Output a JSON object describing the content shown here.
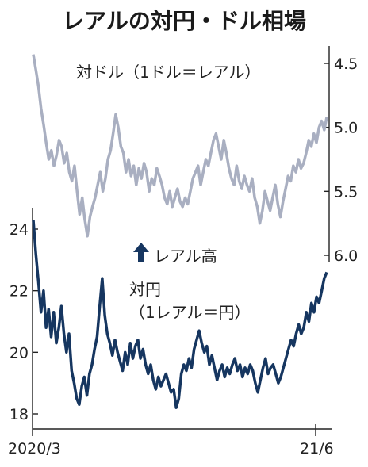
{
  "chart_data": {
    "type": "line",
    "title": "レアルの対円・ドル相場",
    "x_labels": [
      "2020/3",
      "21/6"
    ],
    "annotation": "レアル高",
    "colors": {
      "usd_line": "#a9afc1",
      "jpy_line": "#163660",
      "arrow": "#163660"
    },
    "series": [
      {
        "name_lines": [
          "対ドル（1ドル＝レアル）"
        ],
        "axis": "right",
        "ticks": [
          "4.5",
          "5.0",
          "5.5",
          "6.0"
        ],
        "ylim": [
          4.5,
          6.0
        ],
        "inverted": true,
        "values": [
          4.43,
          4.55,
          4.68,
          4.85,
          4.98,
          5.12,
          5.25,
          5.18,
          5.3,
          5.22,
          5.1,
          5.15,
          5.28,
          5.2,
          5.35,
          5.42,
          5.3,
          5.5,
          5.68,
          5.55,
          5.72,
          5.85,
          5.7,
          5.62,
          5.55,
          5.45,
          5.35,
          5.5,
          5.4,
          5.25,
          5.18,
          5.05,
          4.9,
          5.0,
          5.15,
          5.2,
          5.35,
          5.25,
          5.38,
          5.3,
          5.45,
          5.32,
          5.4,
          5.28,
          5.35,
          5.5,
          5.4,
          5.45,
          5.32,
          5.38,
          5.45,
          5.55,
          5.6,
          5.5,
          5.62,
          5.55,
          5.48,
          5.58,
          5.62,
          5.55,
          5.6,
          5.5,
          5.4,
          5.35,
          5.3,
          5.45,
          5.35,
          5.25,
          5.3,
          5.2,
          5.1,
          5.05,
          5.15,
          5.25,
          5.1,
          5.2,
          5.32,
          5.4,
          5.45,
          5.3,
          5.42,
          5.48,
          5.38,
          5.45,
          5.5,
          5.4,
          5.55,
          5.62,
          5.75,
          5.65,
          5.5,
          5.58,
          5.65,
          5.55,
          5.45,
          5.6,
          5.7,
          5.58,
          5.48,
          5.38,
          5.42,
          5.3,
          5.35,
          5.25,
          5.32,
          5.28,
          5.2,
          5.1,
          5.15,
          5.05,
          5.12,
          5.0,
          4.95,
          5.02,
          4.92
        ]
      },
      {
        "name_lines": [
          "対円",
          "（1レアル＝円）"
        ],
        "axis": "left",
        "ticks": [
          "18",
          "20",
          "22",
          "24"
        ],
        "ylim": [
          18,
          24
        ],
        "inverted": false,
        "values": [
          24.3,
          23.2,
          22.3,
          21.3,
          22.0,
          20.8,
          21.4,
          20.5,
          21.3,
          20.3,
          20.8,
          21.5,
          20.6,
          20.0,
          20.6,
          19.4,
          19.0,
          18.5,
          18.3,
          18.9,
          19.2,
          18.6,
          19.3,
          19.6,
          20.1,
          20.5,
          21.5,
          22.4,
          21.2,
          20.6,
          20.3,
          19.9,
          20.4,
          20.0,
          19.7,
          19.4,
          20.0,
          19.6,
          20.3,
          19.8,
          20.2,
          20.4,
          19.8,
          20.1,
          19.6,
          19.3,
          19.6,
          19.1,
          18.8,
          19.2,
          18.9,
          19.1,
          19.3,
          19.0,
          18.7,
          18.8,
          18.2,
          18.5,
          19.3,
          19.6,
          19.4,
          19.8,
          19.5,
          20.1,
          20.4,
          20.7,
          20.3,
          20.0,
          20.2,
          19.6,
          19.9,
          19.5,
          19.1,
          19.4,
          19.6,
          19.2,
          19.5,
          19.3,
          19.6,
          19.8,
          19.4,
          19.6,
          19.2,
          19.5,
          19.3,
          19.6,
          19.4,
          19.0,
          18.7,
          19.1,
          19.5,
          19.8,
          19.3,
          19.5,
          19.6,
          19.3,
          19.0,
          19.2,
          19.5,
          19.8,
          20.1,
          20.4,
          20.2,
          20.6,
          20.9,
          20.6,
          20.8,
          21.3,
          21.0,
          21.6,
          21.3,
          21.8,
          21.6,
          22.0,
          22.4,
          22.6
        ]
      }
    ]
  }
}
